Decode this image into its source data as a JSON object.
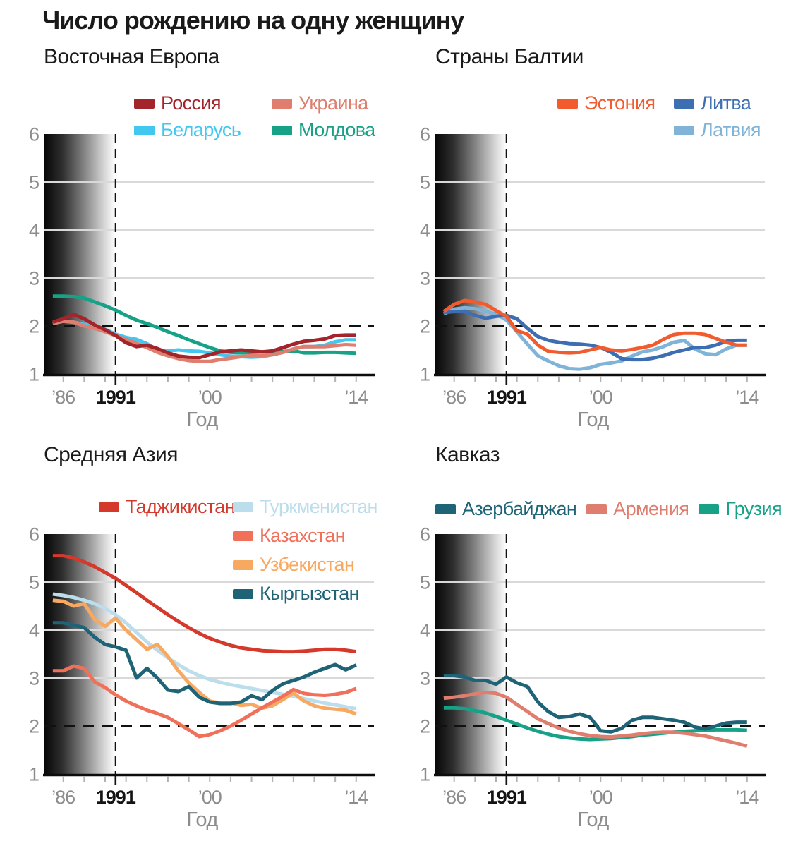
{
  "page_title": "Число рождению на одну женщину",
  "axis": {
    "xlabel": "Год",
    "ylim": [
      1,
      6
    ],
    "y_tick_labels": [
      "6",
      "5",
      "4",
      "3",
      "2",
      "1"
    ],
    "x_tick_labels": [
      {
        "year": 1986,
        "label": "’86",
        "emphasis": false
      },
      {
        "year": 1991,
        "label": "1991",
        "emphasis": true
      },
      {
        "year": 2000,
        "label": "’00",
        "emphasis": false
      },
      {
        "year": 2014,
        "label": "’14",
        "emphasis": false
      }
    ],
    "minor_tick_years": [
      1986,
      1988,
      1990,
      1992,
      1994,
      1996,
      1998,
      2000,
      2002,
      2004,
      2006,
      2008,
      2010,
      2012,
      2014
    ]
  },
  "reference": {
    "dashed_horizontal_value": 2,
    "dashed_vertical_year": 1991,
    "shaded_region_end_year": 1991
  },
  "chart_data": [
    {
      "id": "ee",
      "type": "line",
      "title": "Восточная Европа",
      "x": [
        1985,
        1986,
        1987,
        1988,
        1989,
        1990,
        1991,
        1992,
        1993,
        1994,
        1995,
        1996,
        1997,
        1998,
        1999,
        2000,
        2001,
        2002,
        2003,
        2004,
        2005,
        2006,
        2007,
        2008,
        2009,
        2010,
        2011,
        2012,
        2013,
        2014
      ],
      "draw_order": [
        3,
        2,
        1,
        0
      ],
      "series": [
        {
          "name": "Россия",
          "color": "#A3242B",
          "values": [
            2.08,
            2.15,
            2.24,
            2.15,
            2.02,
            1.92,
            1.8,
            1.65,
            1.57,
            1.6,
            1.53,
            1.44,
            1.37,
            1.35,
            1.34,
            1.4,
            1.46,
            1.48,
            1.5,
            1.48,
            1.46,
            1.48,
            1.55,
            1.62,
            1.68,
            1.7,
            1.73,
            1.8,
            1.81,
            1.81
          ]
        },
        {
          "name": "Украина",
          "color": "#DF7E6E",
          "values": [
            2.05,
            2.1,
            2.08,
            2.0,
            1.95,
            1.88,
            1.8,
            1.72,
            1.64,
            1.55,
            1.45,
            1.38,
            1.32,
            1.28,
            1.26,
            1.26,
            1.3,
            1.33,
            1.36,
            1.38,
            1.38,
            1.4,
            1.45,
            1.52,
            1.57,
            1.57,
            1.57,
            1.59,
            1.61,
            1.6
          ]
        },
        {
          "name": "Беларусь",
          "color": "#41C7F0",
          "values": [
            2.05,
            2.1,
            2.08,
            2.03,
            2.0,
            1.93,
            1.83,
            1.76,
            1.72,
            1.63,
            1.5,
            1.48,
            1.5,
            1.48,
            1.47,
            1.44,
            1.4,
            1.37,
            1.36,
            1.35,
            1.36,
            1.4,
            1.45,
            1.52,
            1.57,
            1.57,
            1.6,
            1.67,
            1.71,
            1.71
          ]
        },
        {
          "name": "Молдова",
          "color": "#17A287",
          "values": [
            2.62,
            2.62,
            2.61,
            2.58,
            2.5,
            2.42,
            2.33,
            2.22,
            2.12,
            2.05,
            1.97,
            1.88,
            1.8,
            1.71,
            1.63,
            1.55,
            1.48,
            1.45,
            1.44,
            1.45,
            1.46,
            1.46,
            1.47,
            1.48,
            1.44,
            1.44,
            1.45,
            1.45,
            1.44,
            1.43
          ]
        }
      ]
    },
    {
      "id": "ba",
      "type": "line",
      "title": "Страны Балтии",
      "x": [
        1985,
        1986,
        1987,
        1988,
        1989,
        1990,
        1991,
        1992,
        1993,
        1994,
        1995,
        1996,
        1997,
        1998,
        1999,
        2000,
        2001,
        2002,
        2003,
        2004,
        2005,
        2006,
        2007,
        2008,
        2009,
        2010,
        2011,
        2012,
        2013,
        2014
      ],
      "draw_order": [
        2,
        1,
        0
      ],
      "series": [
        {
          "name": "Эстония",
          "color": "#F15B2E",
          "values": [
            2.3,
            2.45,
            2.53,
            2.5,
            2.45,
            2.32,
            2.2,
            1.9,
            1.83,
            1.6,
            1.47,
            1.45,
            1.44,
            1.45,
            1.5,
            1.55,
            1.5,
            1.48,
            1.51,
            1.55,
            1.6,
            1.72,
            1.82,
            1.85,
            1.85,
            1.82,
            1.74,
            1.66,
            1.6,
            1.6
          ]
        },
        {
          "name": "Литва",
          "color": "#3C6EB1",
          "values": [
            2.28,
            2.3,
            2.3,
            2.22,
            2.16,
            2.2,
            2.22,
            2.15,
            1.95,
            1.78,
            1.7,
            1.66,
            1.63,
            1.62,
            1.6,
            1.55,
            1.45,
            1.32,
            1.3,
            1.3,
            1.33,
            1.38,
            1.45,
            1.5,
            1.55,
            1.55,
            1.6,
            1.68,
            1.7,
            1.7
          ]
        },
        {
          "name": "Латвия",
          "color": "#7FB3D8",
          "values": [
            2.25,
            2.35,
            2.38,
            2.36,
            2.3,
            2.25,
            2.12,
            1.88,
            1.62,
            1.38,
            1.27,
            1.17,
            1.11,
            1.1,
            1.13,
            1.2,
            1.23,
            1.27,
            1.37,
            1.46,
            1.5,
            1.57,
            1.66,
            1.7,
            1.52,
            1.42,
            1.4,
            1.52,
            1.6,
            1.6
          ]
        }
      ]
    },
    {
      "id": "ca",
      "type": "line",
      "title": "Средняя Азия",
      "x": [
        1985,
        1986,
        1987,
        1988,
        1989,
        1990,
        1991,
        1992,
        1993,
        1994,
        1995,
        1996,
        1997,
        1998,
        1999,
        2000,
        2001,
        2002,
        2003,
        2004,
        2005,
        2006,
        2007,
        2008,
        2009,
        2010,
        2011,
        2012,
        2013,
        2014
      ],
      "draw_order": [
        1,
        3,
        2,
        4,
        0
      ],
      "series": [
        {
          "name": "Таджикистан",
          "color": "#D5392B",
          "values": [
            5.55,
            5.55,
            5.5,
            5.42,
            5.32,
            5.2,
            5.08,
            4.93,
            4.78,
            4.62,
            4.47,
            4.32,
            4.18,
            4.05,
            3.93,
            3.83,
            3.75,
            3.68,
            3.63,
            3.6,
            3.57,
            3.56,
            3.55,
            3.55,
            3.56,
            3.58,
            3.6,
            3.6,
            3.58,
            3.55
          ]
        },
        {
          "name": "Туркменистан",
          "color": "#BBDDEC",
          "values": [
            4.75,
            4.72,
            4.68,
            4.62,
            4.55,
            4.45,
            4.32,
            4.15,
            3.95,
            3.75,
            3.58,
            3.42,
            3.28,
            3.15,
            3.05,
            2.97,
            2.91,
            2.86,
            2.82,
            2.78,
            2.74,
            2.7,
            2.66,
            2.62,
            2.57,
            2.52,
            2.48,
            2.44,
            2.4,
            2.36
          ]
        },
        {
          "name": "Казахстан",
          "color": "#F0705A",
          "values": [
            3.15,
            3.15,
            3.25,
            3.2,
            2.92,
            2.8,
            2.65,
            2.52,
            2.42,
            2.33,
            2.26,
            2.18,
            2.05,
            1.92,
            1.78,
            1.82,
            1.9,
            2.0,
            2.12,
            2.25,
            2.38,
            2.5,
            2.62,
            2.76,
            2.68,
            2.65,
            2.64,
            2.66,
            2.7,
            2.78
          ]
        },
        {
          "name": "Узбекистан",
          "color": "#F7A861",
          "values": [
            4.62,
            4.6,
            4.5,
            4.55,
            4.22,
            4.08,
            4.25,
            4.0,
            3.8,
            3.6,
            3.7,
            3.45,
            3.15,
            2.9,
            2.7,
            2.52,
            2.48,
            2.49,
            2.43,
            2.45,
            2.37,
            2.42,
            2.55,
            2.69,
            2.52,
            2.42,
            2.37,
            2.35,
            2.33,
            2.25
          ]
        },
        {
          "name": "Кыргызстан",
          "color": "#1F6377",
          "values": [
            4.15,
            4.15,
            4.1,
            4.05,
            3.85,
            3.7,
            3.65,
            3.58,
            3.0,
            3.2,
            3.0,
            2.75,
            2.72,
            2.82,
            2.6,
            2.5,
            2.47,
            2.47,
            2.5,
            2.63,
            2.55,
            2.74,
            2.88,
            2.95,
            3.02,
            3.12,
            3.2,
            3.28,
            3.17,
            3.27
          ]
        }
      ]
    },
    {
      "id": "kv",
      "type": "line",
      "title": "Кавказ",
      "x": [
        1985,
        1986,
        1987,
        1988,
        1989,
        1990,
        1991,
        1992,
        1993,
        1994,
        1995,
        1996,
        1997,
        1998,
        1999,
        2000,
        2001,
        2002,
        2003,
        2004,
        2005,
        2006,
        2007,
        2008,
        2009,
        2010,
        2011,
        2012,
        2013,
        2014
      ],
      "draw_order": [
        2,
        1,
        0
      ],
      "series": [
        {
          "name": "Азербайджан",
          "color": "#1F6377",
          "values": [
            3.05,
            3.05,
            3.02,
            2.95,
            2.95,
            2.87,
            3.02,
            2.9,
            2.82,
            2.5,
            2.3,
            2.18,
            2.2,
            2.25,
            2.18,
            1.9,
            1.88,
            1.95,
            2.12,
            2.18,
            2.18,
            2.15,
            2.12,
            2.08,
            1.98,
            1.94,
            2.0,
            2.06,
            2.08,
            2.08
          ]
        },
        {
          "name": "Армения",
          "color": "#DF7E6E",
          "values": [
            2.58,
            2.6,
            2.63,
            2.67,
            2.7,
            2.68,
            2.6,
            2.45,
            2.3,
            2.15,
            2.05,
            1.96,
            1.89,
            1.84,
            1.8,
            1.78,
            1.77,
            1.79,
            1.81,
            1.84,
            1.86,
            1.87,
            1.87,
            1.85,
            1.82,
            1.79,
            1.74,
            1.69,
            1.64,
            1.58
          ]
        },
        {
          "name": "Грузия",
          "color": "#17A287",
          "values": [
            2.38,
            2.38,
            2.36,
            2.32,
            2.27,
            2.2,
            2.12,
            2.04,
            1.96,
            1.89,
            1.83,
            1.78,
            1.75,
            1.73,
            1.72,
            1.73,
            1.74,
            1.76,
            1.78,
            1.81,
            1.83,
            1.85,
            1.87,
            1.89,
            1.9,
            1.91,
            1.92,
            1.92,
            1.92,
            1.91
          ]
        }
      ]
    }
  ]
}
